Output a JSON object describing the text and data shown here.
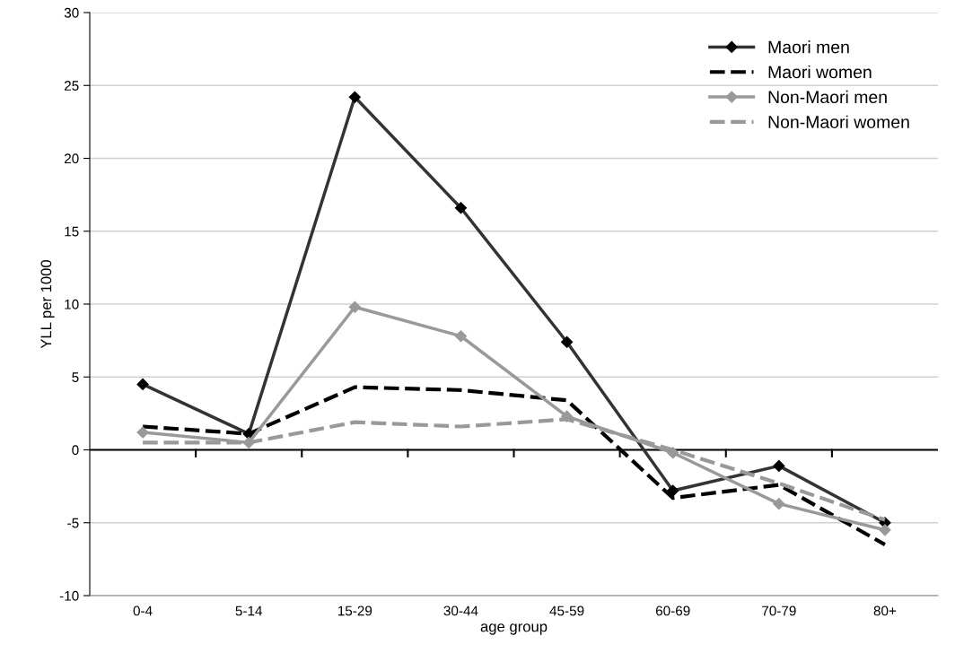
{
  "chart_data": {
    "type": "line",
    "xlabel": "age group",
    "ylabel": "YLL per 1000",
    "categories": [
      "0-4",
      "5-14",
      "15-29",
      "30-44",
      "45-59",
      "60-69",
      "70-79",
      "80+"
    ],
    "series": [
      {
        "name": "Maori men",
        "color": "#333333",
        "marker": "diamond",
        "line_style": "solid",
        "values": [
          4.5,
          1.1,
          24.2,
          16.6,
          7.4,
          -2.8,
          -1.1,
          -5.0
        ]
      },
      {
        "name": "Maori women",
        "color": "#000000",
        "marker": "none",
        "line_style": "dashed",
        "values": [
          1.6,
          1.1,
          4.3,
          4.1,
          3.4,
          -3.3,
          -2.4,
          -6.5
        ]
      },
      {
        "name": "Non-Maori men",
        "color": "#999999",
        "marker": "diamond",
        "line_style": "solid",
        "values": [
          1.2,
          0.5,
          9.8,
          7.8,
          2.3,
          -0.2,
          -3.7,
          -5.5
        ]
      },
      {
        "name": "Non-Maori women",
        "color": "#999999",
        "marker": "none",
        "line_style": "dashed",
        "values": [
          0.5,
          0.5,
          1.9,
          1.6,
          2.1,
          0.0,
          -2.3,
          -4.8
        ]
      }
    ],
    "ylim": [
      -10,
      30
    ],
    "yticks": [
      -10,
      -5,
      0,
      5,
      10,
      15,
      20,
      25,
      30
    ],
    "grid": "y",
    "legend": "top right"
  }
}
